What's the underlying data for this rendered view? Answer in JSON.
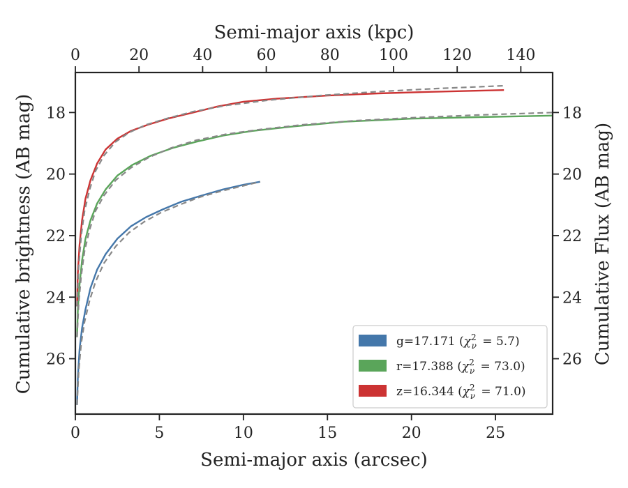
{
  "chart_data": {
    "type": "line",
    "title": "",
    "xlabel": "Semi-major axis (arcsec)",
    "x2label": "Semi-major axis (kpc)",
    "ylabel": "Cumulative brightness (AB mag)",
    "y2label": "Cumulative Flux (AB mag)",
    "xlim": [
      0,
      28.4
    ],
    "x2lim": [
      0,
      150
    ],
    "ylim": [
      27.8,
      16.7
    ],
    "y_inverted": true,
    "xticks": [
      0,
      5,
      10,
      15,
      20,
      25
    ],
    "x2ticks": [
      0,
      20,
      40,
      60,
      80,
      100,
      120,
      140
    ],
    "yticks": [
      18,
      20,
      22,
      24,
      26
    ],
    "grid": false,
    "legend_position": "lower-right",
    "series": [
      {
        "name": "g=17.171",
        "chi_label": "χ",
        "chi_sub": "ν",
        "chi_sup": "2",
        "chi_value": "= 5.7)",
        "color": "#4477aa",
        "x": [
          0.1,
          0.15,
          0.25,
          0.4,
          0.6,
          0.9,
          1.3,
          1.8,
          2.5,
          3.3,
          4.2,
          5.2,
          6.3,
          7.5,
          8.8,
          10.0,
          11.0
        ],
        "y": [
          27.5,
          26.6,
          25.7,
          25.0,
          24.4,
          23.7,
          23.1,
          22.6,
          22.1,
          21.7,
          21.4,
          21.15,
          20.9,
          20.7,
          20.5,
          20.35,
          20.25
        ],
        "model_x": [
          0.1,
          0.2,
          0.35,
          0.55,
          0.85,
          1.2,
          1.7,
          2.4,
          3.2,
          4.1,
          5.1,
          6.2,
          7.4,
          8.7,
          10.0,
          11.0
        ],
        "model_y": [
          27.5,
          26.4,
          25.5,
          24.8,
          24.1,
          23.5,
          22.9,
          22.35,
          21.9,
          21.55,
          21.25,
          21.0,
          20.75,
          20.55,
          20.38,
          20.25
        ]
      },
      {
        "name": "r=17.388",
        "chi_label": "χ",
        "chi_sub": "ν",
        "chi_sup": "2",
        "chi_value": "= 73.0)",
        "color": "#5aa55a",
        "x": [
          0.1,
          0.15,
          0.25,
          0.4,
          0.6,
          0.9,
          1.3,
          1.8,
          2.5,
          3.4,
          4.5,
          5.8,
          7.2,
          8.8,
          10.5,
          13.0,
          16.0,
          20.0,
          24.0,
          28.4
        ],
        "y": [
          25.3,
          24.4,
          23.6,
          22.8,
          22.1,
          21.5,
          20.95,
          20.5,
          20.05,
          19.7,
          19.4,
          19.15,
          18.95,
          18.75,
          18.6,
          18.45,
          18.3,
          18.2,
          18.15,
          18.1
        ],
        "model_x": [
          0.1,
          0.2,
          0.35,
          0.55,
          0.85,
          1.2,
          1.7,
          2.4,
          3.3,
          4.4,
          5.7,
          7.2,
          9.0,
          11.0,
          13.5,
          16.5,
          20.0,
          24.0,
          28.4
        ],
        "model_y": [
          25.3,
          24.2,
          23.3,
          22.5,
          21.8,
          21.2,
          20.7,
          20.2,
          19.8,
          19.45,
          19.15,
          18.9,
          18.7,
          18.55,
          18.4,
          18.27,
          18.17,
          18.08,
          18.0
        ]
      },
      {
        "name": "z=16.344",
        "chi_label": "χ",
        "chi_sub": "ν",
        "chi_sup": "2",
        "chi_value": "= 71.0)",
        "color": "#cc3333",
        "x": [
          0.1,
          0.15,
          0.25,
          0.4,
          0.6,
          0.9,
          1.3,
          1.8,
          2.5,
          3.3,
          4.3,
          5.5,
          7.0,
          8.5,
          10.0,
          12.0,
          15.0,
          18.0,
          21.0,
          25.5
        ],
        "y": [
          24.3,
          23.2,
          22.3,
          21.5,
          20.8,
          20.2,
          19.65,
          19.2,
          18.85,
          18.6,
          18.4,
          18.2,
          18.0,
          17.8,
          17.65,
          17.55,
          17.45,
          17.38,
          17.33,
          17.27
        ],
        "model_x": [
          0.1,
          0.2,
          0.35,
          0.55,
          0.85,
          1.2,
          1.7,
          2.4,
          3.2,
          4.2,
          5.4,
          7.0,
          9.0,
          11.5,
          14.5,
          18.0,
          21.5,
          25.5
        ],
        "model_y": [
          24.3,
          23.0,
          22.0,
          21.2,
          20.5,
          19.9,
          19.4,
          18.95,
          18.65,
          18.4,
          18.2,
          17.97,
          17.77,
          17.6,
          17.45,
          17.32,
          17.22,
          17.13
        ]
      }
    ]
  },
  "colors": {
    "model_line": "#888888",
    "axis": "#222222"
  }
}
